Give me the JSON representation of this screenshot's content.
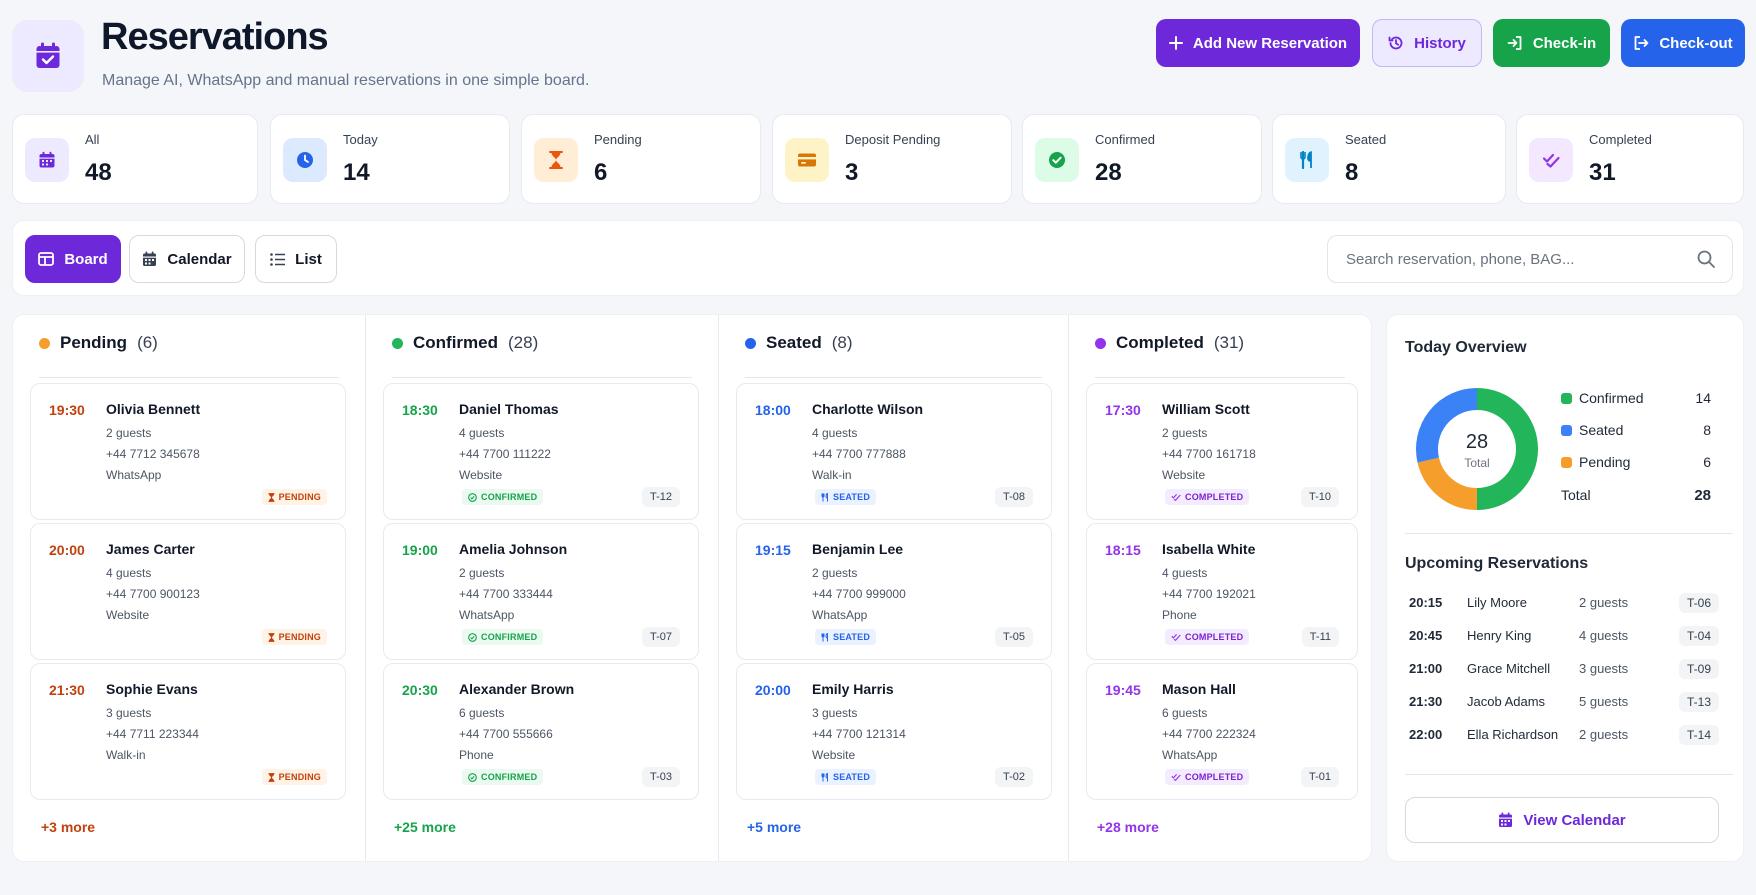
{
  "header": {
    "title": "Reservations",
    "subtitle": "Manage AI, WhatsApp and manual reservations in one simple board.",
    "buttons": {
      "add": "Add New Reservation",
      "history": "History",
      "checkin": "Check-in",
      "checkout": "Check-out"
    }
  },
  "stats": [
    {
      "label": "All",
      "value": "48",
      "icon": "calendar-icon"
    },
    {
      "label": "Today",
      "value": "14",
      "icon": "clock-icon"
    },
    {
      "label": "Pending",
      "value": "6",
      "icon": "hourglass-icon"
    },
    {
      "label": "Deposit Pending",
      "value": "3",
      "icon": "credit-card-icon"
    },
    {
      "label": "Confirmed",
      "value": "28",
      "icon": "check-circle-icon"
    },
    {
      "label": "Seated",
      "value": "8",
      "icon": "utensils-icon"
    },
    {
      "label": "Completed",
      "value": "31",
      "icon": "double-check-icon"
    }
  ],
  "views": {
    "board": "Board",
    "calendar": "Calendar",
    "list": "List"
  },
  "search": {
    "placeholder": "Search reservation, phone, BAG..."
  },
  "columns": [
    {
      "title": "Pending",
      "count": "(6)",
      "more": "+3 more",
      "cards": [
        {
          "time": "19:30",
          "name": "Olivia Bennett",
          "guests": "2 guests",
          "phone": "+44 7712 345678",
          "source": "WhatsApp",
          "status": "PENDING",
          "table": ""
        },
        {
          "time": "20:00",
          "name": "James Carter",
          "guests": "4 guests",
          "phone": "+44 7700 900123",
          "source": "Website",
          "status": "PENDING",
          "table": ""
        },
        {
          "time": "21:30",
          "name": "Sophie Evans",
          "guests": "3 guests",
          "phone": "+44 7711 223344",
          "source": "Walk-in",
          "status": "PENDING",
          "table": ""
        }
      ]
    },
    {
      "title": "Confirmed",
      "count": "(28)",
      "more": "+25 more",
      "cards": [
        {
          "time": "18:30",
          "name": "Daniel Thomas",
          "guests": "4 guests",
          "phone": "+44 7700 111222",
          "source": "Website",
          "status": "CONFIRMED",
          "table": "T-12"
        },
        {
          "time": "19:00",
          "name": "Amelia Johnson",
          "guests": "2 guests",
          "phone": "+44 7700 333444",
          "source": "WhatsApp",
          "status": "CONFIRMED",
          "table": "T-07"
        },
        {
          "time": "20:30",
          "name": "Alexander Brown",
          "guests": "6 guests",
          "phone": "+44 7700 555666",
          "source": "Phone",
          "status": "CONFIRMED",
          "table": "T-03"
        }
      ]
    },
    {
      "title": "Seated",
      "count": "(8)",
      "more": "+5 more",
      "cards": [
        {
          "time": "18:00",
          "name": "Charlotte Wilson",
          "guests": "4 guests",
          "phone": "+44 7700 777888",
          "source": "Walk-in",
          "status": "SEATED",
          "table": "T-08"
        },
        {
          "time": "19:15",
          "name": "Benjamin Lee",
          "guests": "2 guests",
          "phone": "+44 7700 999000",
          "source": "WhatsApp",
          "status": "SEATED",
          "table": "T-05"
        },
        {
          "time": "20:00",
          "name": "Emily Harris",
          "guests": "3 guests",
          "phone": "+44 7700 121314",
          "source": "Website",
          "status": "SEATED",
          "table": "T-02"
        }
      ]
    },
    {
      "title": "Completed",
      "count": "(31)",
      "more": "+28 more",
      "cards": [
        {
          "time": "17:30",
          "name": "William Scott",
          "guests": "2 guests",
          "phone": "+44 7700 161718",
          "source": "Website",
          "status": "COMPLETED",
          "table": "T-10"
        },
        {
          "time": "18:15",
          "name": "Isabella White",
          "guests": "4 guests",
          "phone": "+44 7700 192021",
          "source": "Phone",
          "status": "COMPLETED",
          "table": "T-11"
        },
        {
          "time": "19:45",
          "name": "Mason Hall",
          "guests": "6 guests",
          "phone": "+44 7700 222324",
          "source": "WhatsApp",
          "status": "COMPLETED",
          "table": "T-01"
        }
      ]
    }
  ],
  "overview": {
    "title": "Today Overview",
    "total_value": "28",
    "total_caption": "Total",
    "legend": [
      {
        "label": "Confirmed",
        "value": "14",
        "color": "#22b55a"
      },
      {
        "label": "Seated",
        "value": "8",
        "color": "#3b82f6"
      },
      {
        "label": "Pending",
        "value": "6",
        "color": "#f59e2b"
      }
    ],
    "total_label": "Total",
    "total_count": "28"
  },
  "upcoming": {
    "title": "Upcoming Reservations",
    "rows": [
      {
        "time": "20:15",
        "name": "Lily Moore",
        "guests": "2 guests",
        "table": "T-06"
      },
      {
        "time": "20:45",
        "name": "Henry King",
        "guests": "4 guests",
        "table": "T-04"
      },
      {
        "time": "21:00",
        "name": "Grace Mitchell",
        "guests": "3 guests",
        "table": "T-09"
      },
      {
        "time": "21:30",
        "name": "Jacob Adams",
        "guests": "5 guests",
        "table": "T-13"
      },
      {
        "time": "22:00",
        "name": "Ella Richardson",
        "guests": "2 guests",
        "table": "T-14"
      }
    ]
  },
  "view_calendar": "View Calendar",
  "colors": {
    "accent": "#6d28d9",
    "pending": "#f59e2b",
    "confirmed": "#22b55a",
    "seated": "#3b82f6",
    "completed": "#9333ea"
  }
}
